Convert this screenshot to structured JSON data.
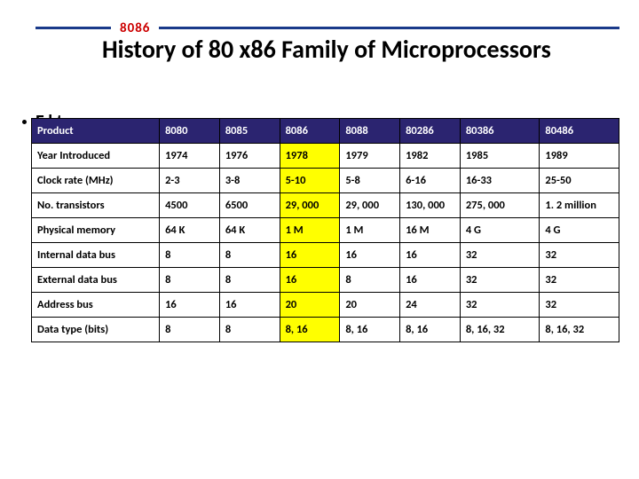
{
  "header": {
    "ruleLabel": "8086",
    "title": "History of 80 x86 Family of Microprocessors",
    "bulletFragment": "E      l   t"
  },
  "table": {
    "highlightColumnIndex": 3,
    "colors": {
      "headerBg": "#2b2470",
      "headerFg": "#ffffff",
      "highlightBg": "#ffff00",
      "border": "#000000",
      "ruleColor": "#1a3a8a",
      "ruleLabelColor": "#cc0000"
    },
    "columns": [
      "Product",
      "8080",
      "8085",
      "8086",
      "8088",
      "80286",
      "80386",
      "80486"
    ],
    "rows": [
      [
        "Year Introduced",
        "1974",
        "1976",
        "1978",
        "1979",
        "1982",
        "1985",
        "1989"
      ],
      [
        "Clock rate (MHz)",
        "2-3",
        "3-8",
        "5-10",
        "5-8",
        "6-16",
        "16-33",
        "25-50"
      ],
      [
        "No. transistors",
        "4500",
        "6500",
        "29, 000",
        "29, 000",
        "130, 000",
        "275, 000",
        "1. 2 million"
      ],
      [
        "Physical memory",
        "64 K",
        "64 K",
        "1 M",
        "1 M",
        "16 M",
        "4 G",
        "4 G"
      ],
      [
        "Internal data bus",
        "8",
        "8",
        "16",
        "16",
        "16",
        "32",
        "32"
      ],
      [
        "External data bus",
        "8",
        "8",
        "16",
        "8",
        "16",
        "32",
        "32"
      ],
      [
        "Address bus",
        "16",
        "16",
        "20",
        "20",
        "24",
        "32",
        "32"
      ],
      [
        "Data type (bits)",
        "8",
        "8",
        "8, 16",
        "8, 16",
        "8, 16",
        "8, 16, 32",
        "8, 16, 32"
      ]
    ]
  }
}
